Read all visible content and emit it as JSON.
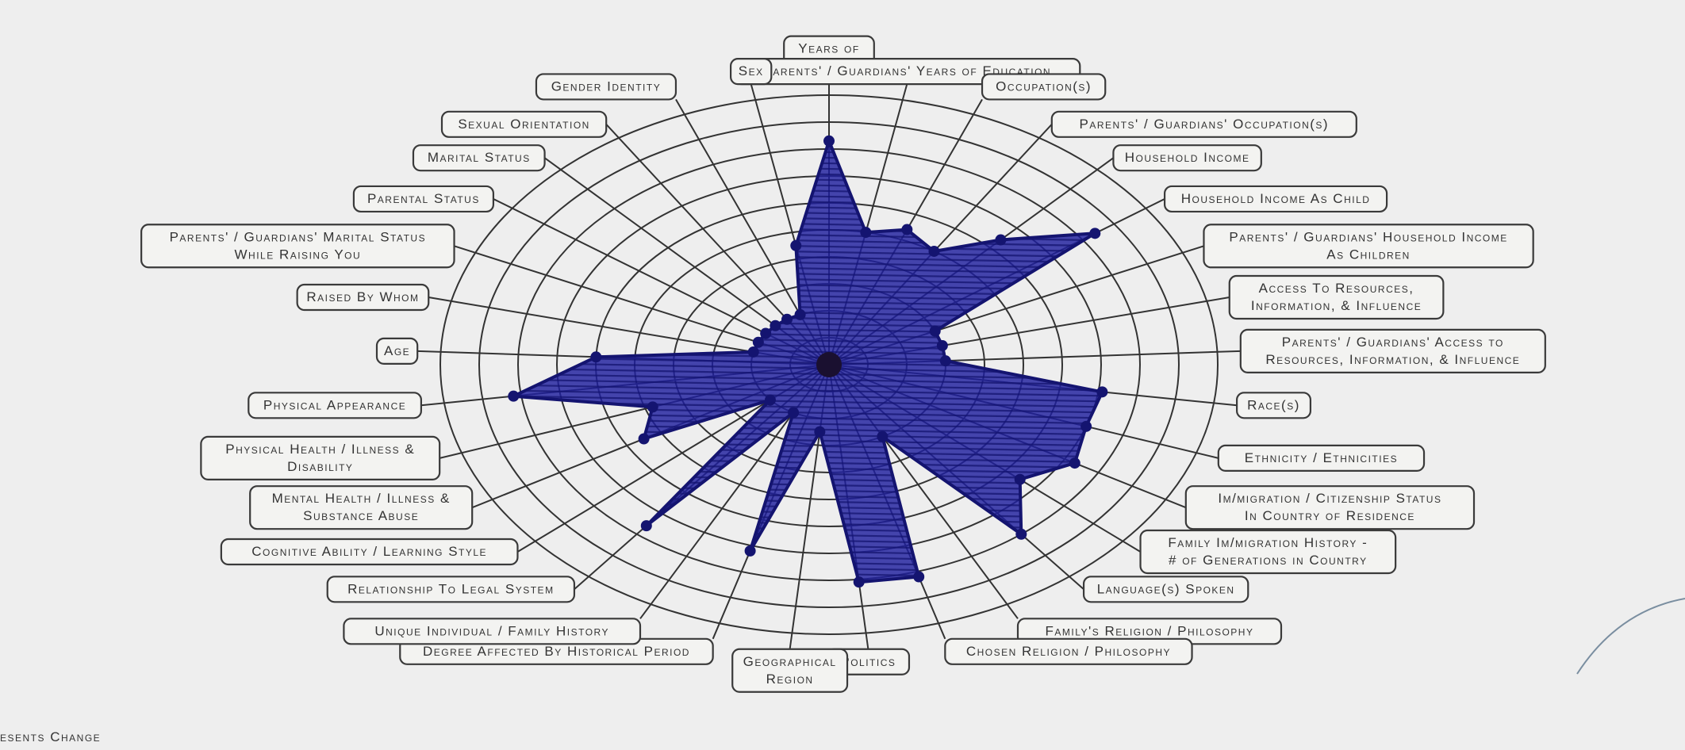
{
  "colors": {
    "paper": "#eeeeee",
    "ink": "#333333",
    "marker": "#1f1f9e",
    "marker_dark": "#141470"
  },
  "diagram": {
    "type": "radar",
    "rings": 10,
    "axes": [
      {
        "label": "Years of Education",
        "value": 8.3
      },
      {
        "label": "Parents' / Guardians' Years of Education",
        "value": 5.0
      },
      {
        "label": "Occupation(s)",
        "value": 5.4
      },
      {
        "label": "Parents' / Guardians' Occupation(s)",
        "value": 5.0
      },
      {
        "label": "Household Income",
        "value": 6.4
      },
      {
        "label": "Household Income As Child",
        "value": 8.4
      },
      {
        "label": "Parents' / Guardians' Household Income As Children",
        "value": 3.0
      },
      {
        "label": "Access To Resources, Information, & Influence",
        "value": 3.0
      },
      {
        "label": "Parents' / Guardians' Access to Resources, Information, & Influence",
        "value": 3.0
      },
      {
        "label": "Race(s)",
        "value": 7.1
      },
      {
        "label": "Ethnicity / Ethnicities",
        "value": 7.0
      },
      {
        "label": "Im/migration / Citizenship Status In Country of Residence",
        "value": 7.3
      },
      {
        "label": "Family Im/migration History - # of Generations in Country",
        "value": 6.5
      },
      {
        "label": "Language(s) Spoken",
        "value": 8.0
      },
      {
        "label": "Family's Religion / Philosophy",
        "value": 3.0
      },
      {
        "label": "Chosen Religion / Philosophy",
        "value": 8.2
      },
      {
        "label": "Politics",
        "value": 8.1
      },
      {
        "label": "Geographical Region",
        "value": 2.5
      },
      {
        "label": "Degree Affected By Historical Period",
        "value": 7.2
      },
      {
        "label": "Unique Individual / Family History",
        "value": 2.0
      },
      {
        "label": "Relationship To Legal System",
        "value": 7.6
      },
      {
        "label": "Cognitive Ability / Learning Style",
        "value": 2.0
      },
      {
        "label": "Mental Health / Illness & Substance Abuse",
        "value": 5.5
      },
      {
        "label": "Physical Health / Illness & Disability",
        "value": 4.8
      },
      {
        "label": "Physical Appearance",
        "value": 8.2
      },
      {
        "label": "Age",
        "value": 6.0
      },
      {
        "label": "Raised By Whom",
        "value": 2.0
      },
      {
        "label": "Parents' / Guardians' Marital Status While Raising You",
        "value": 2.0
      },
      {
        "label": "Parental Status",
        "value": 2.0
      },
      {
        "label": "Marital Status",
        "value": 2.0
      },
      {
        "label": "Sexual Orientation",
        "value": 2.0
      },
      {
        "label": "Gender Identity",
        "value": 2.0
      },
      {
        "label": "Sex",
        "value": 4.5
      }
    ]
  },
  "labels": [
    {
      "lines": [
        "Years of",
        "Education"
      ]
    },
    {
      "lines": [
        "Parents' / Guardians' Years of Education"
      ]
    },
    {
      "lines": [
        "Occupation(s)"
      ]
    },
    {
      "lines": [
        "Parents' / Guardians' Occupation(s)"
      ]
    },
    {
      "lines": [
        "Household Income"
      ]
    },
    {
      "lines": [
        "Household Income As Child"
      ]
    },
    {
      "lines": [
        "Parents' / Guardians' Household Income",
        "As Children"
      ]
    },
    {
      "lines": [
        "Access To Resources,",
        "Information, & Influence"
      ]
    },
    {
      "lines": [
        "Parents' / Guardians' Access to",
        "Resources, Information, & Influence"
      ]
    },
    {
      "lines": [
        "Race(s)"
      ]
    },
    {
      "lines": [
        "Ethnicity / Ethnicities"
      ]
    },
    {
      "lines": [
        "Im/migration / Citizenship Status",
        "In Country of Residence"
      ]
    },
    {
      "lines": [
        "Family Im/migration History -",
        "# of Generations in Country"
      ]
    },
    {
      "lines": [
        "Language(s) Spoken"
      ]
    },
    {
      "lines": [
        "Family's Religion / Philosophy"
      ]
    },
    {
      "lines": [
        "Chosen Religion / Philosophy"
      ]
    },
    {
      "lines": [
        "Politics"
      ]
    },
    {
      "lines": [
        "Geographical",
        "Region"
      ]
    },
    {
      "lines": [
        "Degree Affected By Historical Period"
      ]
    },
    {
      "lines": [
        "Unique Individual / Family History"
      ]
    },
    {
      "lines": [
        "Relationship To Legal System"
      ]
    },
    {
      "lines": [
        "Cognitive Ability / Learning Style"
      ]
    },
    {
      "lines": [
        "Mental Health / Illness &",
        "Substance Abuse"
      ]
    },
    {
      "lines": [
        "Physical Health / Illness &",
        "Disability"
      ]
    },
    {
      "lines": [
        "Physical Appearance"
      ]
    },
    {
      "lines": [
        "Age"
      ]
    },
    {
      "lines": [
        "Raised By Whom"
      ]
    },
    {
      "lines": [
        "Parents' / Guardians' Marital Status",
        "While Raising You"
      ]
    },
    {
      "lines": [
        "Parental Status"
      ]
    },
    {
      "lines": [
        "Marital Status"
      ]
    },
    {
      "lines": [
        "Sexual Orientation"
      ]
    },
    {
      "lines": [
        "Gender Identity"
      ]
    },
    {
      "lines": [
        "Sex"
      ]
    }
  ],
  "footer": {
    "text": "esents Change"
  }
}
